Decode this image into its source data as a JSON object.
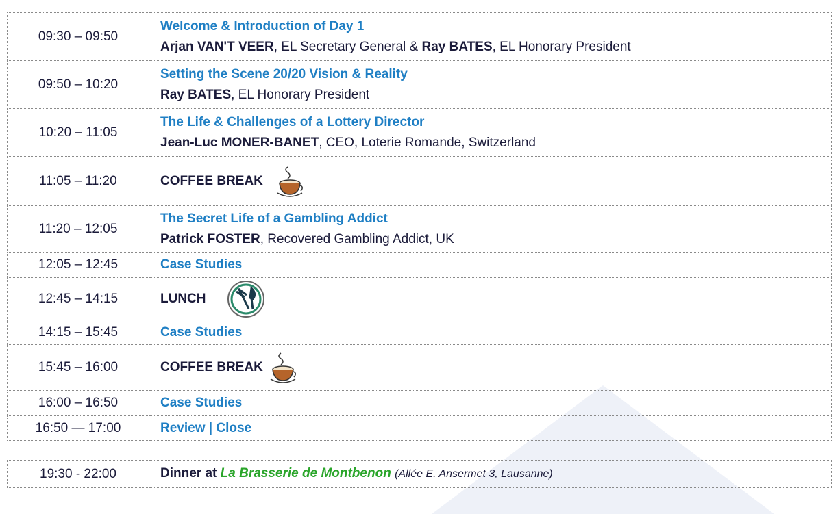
{
  "schedule": [
    {
      "time": "09:30 – 09:50",
      "title": "Welcome & Introduction of Day 1",
      "speaker": [
        {
          "name": "Arjan VAN'T VEER",
          "role": ", EL Secretary General & "
        },
        {
          "name": "Ray BATES",
          "role": ", EL Honorary President"
        }
      ]
    },
    {
      "time": "09:50 – 10:20",
      "title": "Setting the Scene 20/20 Vision & Reality",
      "speaker": [
        {
          "name": "Ray BATES",
          "role": ", EL Honorary President"
        }
      ]
    },
    {
      "time": "10:20 – 11:05",
      "title": "The Life & Challenges of a Lottery Director",
      "speaker": [
        {
          "name": "Jean-Luc MONER-BANET",
          "role": ", CEO, Loterie Romande, Switzerland"
        }
      ]
    },
    {
      "time": "11:05 – 11:20",
      "title": "COFFEE BREAK"
    },
    {
      "time": "11:20 – 12:05",
      "title": "The Secret Life of a Gambling Addict",
      "speaker": [
        {
          "name": "Patrick FOSTER",
          "role": ", Recovered Gambling Addict, UK"
        }
      ]
    },
    {
      "time": "12:05 – 12:45",
      "title": "Case Studies"
    },
    {
      "time": "12:45 – 14:15",
      "title": "LUNCH"
    },
    {
      "time": "14:15 – 15:45",
      "title": "Case Studies"
    },
    {
      "time": "15:45 – 16:00",
      "title": "COFFEE BREAK"
    },
    {
      "time": "16:00 – 16:50",
      "title": "Case Studies"
    },
    {
      "time": "16:50 — 17:00",
      "title": "Review | Close"
    }
  ],
  "dinner": {
    "time": "19:30 - 22:00",
    "lead": "Dinner at",
    "venue": "La Brasserie de Montbenon",
    "address": "(Allée E. Ansermet 3, Lausanne)"
  }
}
